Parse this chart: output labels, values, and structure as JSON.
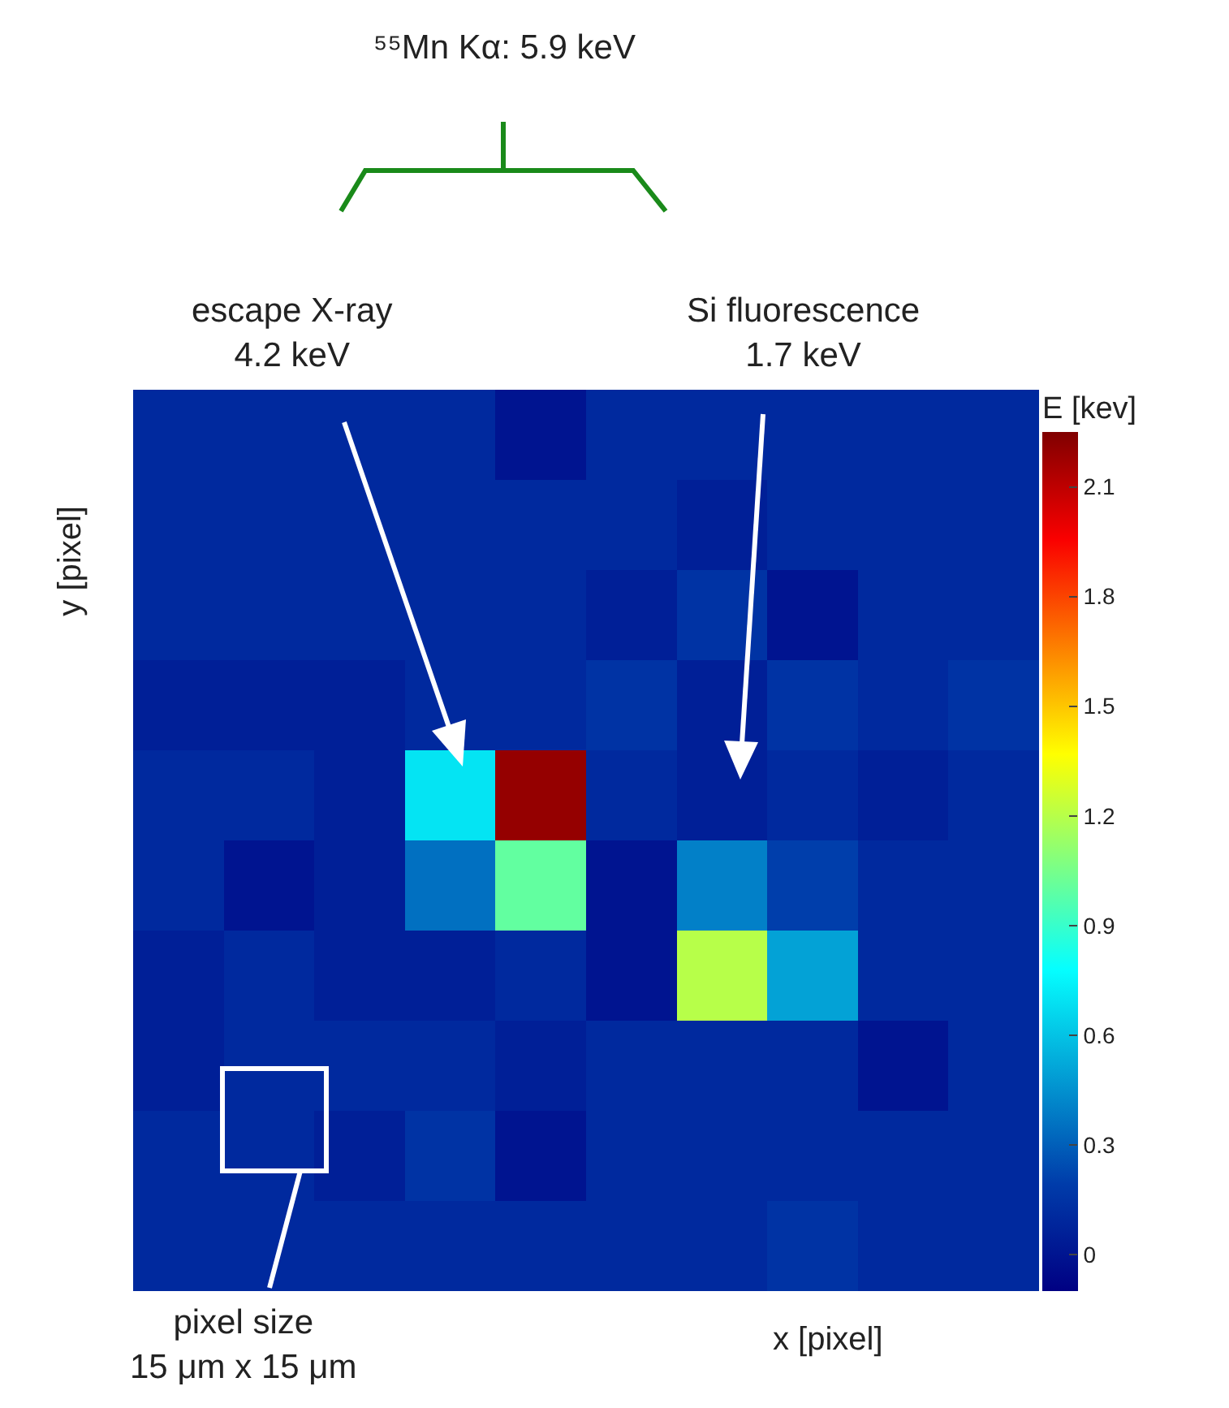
{
  "chart_data": {
    "type": "heatmap",
    "categories": [
      null,
      null,
      null,
      null,
      null,
      null,
      null,
      null,
      null,
      null
    ],
    "y_categories": [
      null,
      null,
      null,
      null,
      null,
      null,
      null,
      null,
      null,
      null
    ],
    "cells": [
      [
        0.1,
        0.1,
        0.1,
        0.1,
        0.0,
        0.1,
        0.1,
        0.1,
        0.1,
        0.1
      ],
      [
        0.1,
        0.1,
        0.1,
        0.1,
        0.1,
        0.1,
        0.05,
        0.1,
        0.1,
        0.1
      ],
      [
        0.1,
        0.1,
        0.1,
        0.1,
        0.1,
        0.05,
        0.15,
        0.0,
        0.1,
        0.1
      ],
      [
        0.05,
        0.05,
        0.05,
        0.1,
        0.1,
        0.15,
        0.05,
        0.15,
        0.1,
        0.15
      ],
      [
        0.1,
        0.1,
        0.05,
        0.7,
        2.2,
        0.1,
        0.05,
        0.1,
        0.05,
        0.1
      ],
      [
        0.1,
        0.0,
        0.05,
        0.35,
        1.0,
        0.0,
        0.4,
        0.2,
        0.1,
        0.1
      ],
      [
        0.05,
        0.1,
        0.05,
        0.05,
        0.1,
        0.0,
        1.2,
        0.5,
        0.1,
        0.1
      ],
      [
        0.05,
        0.1,
        0.1,
        0.1,
        0.05,
        0.1,
        0.1,
        0.1,
        0.0,
        0.1
      ],
      [
        0.1,
        0.1,
        0.05,
        0.15,
        0.0,
        0.1,
        0.1,
        0.1,
        0.1,
        0.1
      ],
      [
        0.1,
        0.1,
        0.1,
        0.1,
        0.1,
        0.1,
        0.1,
        0.15,
        0.1,
        0.1
      ]
    ],
    "clim": [
      -0.1,
      2.25
    ],
    "cticks": [
      0,
      0.3,
      0.6,
      0.9,
      1.2,
      1.5,
      1.8,
      2.1
    ],
    "clabel": "E [kev]",
    "xlabel": "x [pixel]",
    "ylabel": "y [pixel]",
    "annotations": [
      "⁵⁵Mn Kα: 5.9 keV",
      "escape X-ray\n4.2 keV",
      "Si fluorescence\n1.7 keV",
      "pixel size\n15 μm x 15 μm"
    ]
  }
}
